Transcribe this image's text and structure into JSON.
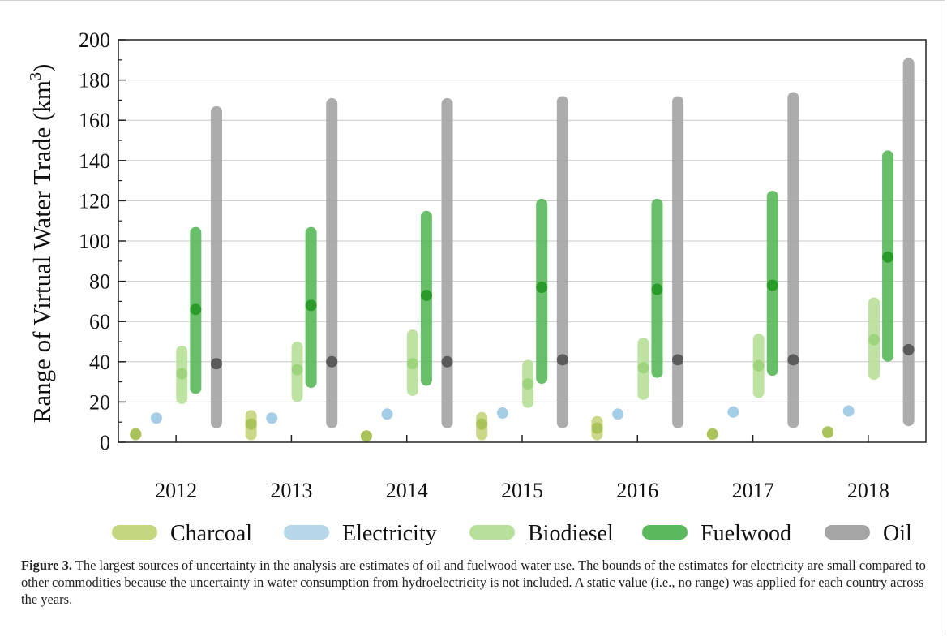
{
  "chart_data": {
    "type": "range",
    "categories": [
      "2012",
      "2013",
      "2014",
      "2015",
      "2016",
      "2017",
      "2018"
    ],
    "ylabel": "Range of Virtual Water Trade (km³)",
    "ylabel_main": "Range of Virtual Water Trade (km",
    "ylabel_sup": "3",
    "ylabel_end": ")",
    "ylim": [
      0,
      200
    ],
    "yticks": [
      0,
      20,
      40,
      60,
      80,
      100,
      120,
      140,
      160,
      180,
      200
    ],
    "ytick_labels": [
      "0",
      "20",
      "40",
      "60",
      "80",
      "100",
      "120",
      "140",
      "160",
      "180",
      "200"
    ],
    "grid": "horizontal",
    "legend_position": "bottom",
    "series": [
      {
        "name": "Charcoal",
        "color": "#c4d67f",
        "low": [
          1,
          1,
          2,
          1,
          1,
          2,
          2
        ],
        "high": [
          7,
          16,
          6,
          15,
          13,
          7,
          8
        ],
        "mid": [
          4,
          9,
          3,
          9,
          7,
          4,
          5
        ]
      },
      {
        "name": "Electricity",
        "color": "#b6d6ea",
        "low": [
          12,
          12,
          14,
          14.5,
          14,
          15,
          15.5
        ],
        "high": [
          12,
          12,
          14,
          14.5,
          14,
          15,
          15.5
        ],
        "mid": [
          12,
          12,
          14,
          14.5,
          14,
          15,
          15.5
        ]
      },
      {
        "name": "Biodiesel",
        "color": "#b8e09a",
        "low": [
          19,
          20,
          23,
          17,
          21,
          22,
          31
        ],
        "high": [
          48,
          50,
          56,
          41,
          52,
          54,
          72
        ],
        "mid": [
          34,
          36,
          39,
          29,
          37,
          38,
          51
        ]
      },
      {
        "name": "Fuelwood",
        "color": "#5cb85c",
        "low": [
          24,
          27,
          28,
          29,
          32,
          33,
          40
        ],
        "high": [
          107,
          107,
          115,
          121,
          121,
          125,
          145
        ],
        "mid": [
          66,
          68,
          73,
          77,
          76,
          78,
          92
        ]
      },
      {
        "name": "Oil",
        "color": "#a5a5a5",
        "low": [
          7,
          7,
          7,
          7,
          7,
          7,
          8
        ],
        "high": [
          167,
          171,
          171,
          172,
          172,
          174,
          191
        ],
        "mid": [
          39,
          40,
          40,
          41,
          41,
          41,
          46
        ]
      }
    ],
    "mid_colors": {
      "Charcoal": "#a9c25a",
      "Electricity": "#a6cde6",
      "Biodiesel": "#9fd47e",
      "Fuelwood": "#2a9b2a",
      "Oil": "#5a5a5a"
    }
  },
  "caption": {
    "label": "Figure 3.",
    "text": " The largest sources of uncertainty in the analysis are estimates of oil and fuelwood water use. The bounds of the estimates for electricity are small compared to other commodities because the uncertainty in water consumption from hydroelectricity is not included. A static value (i.e., no range) was applied for each country across the years."
  }
}
